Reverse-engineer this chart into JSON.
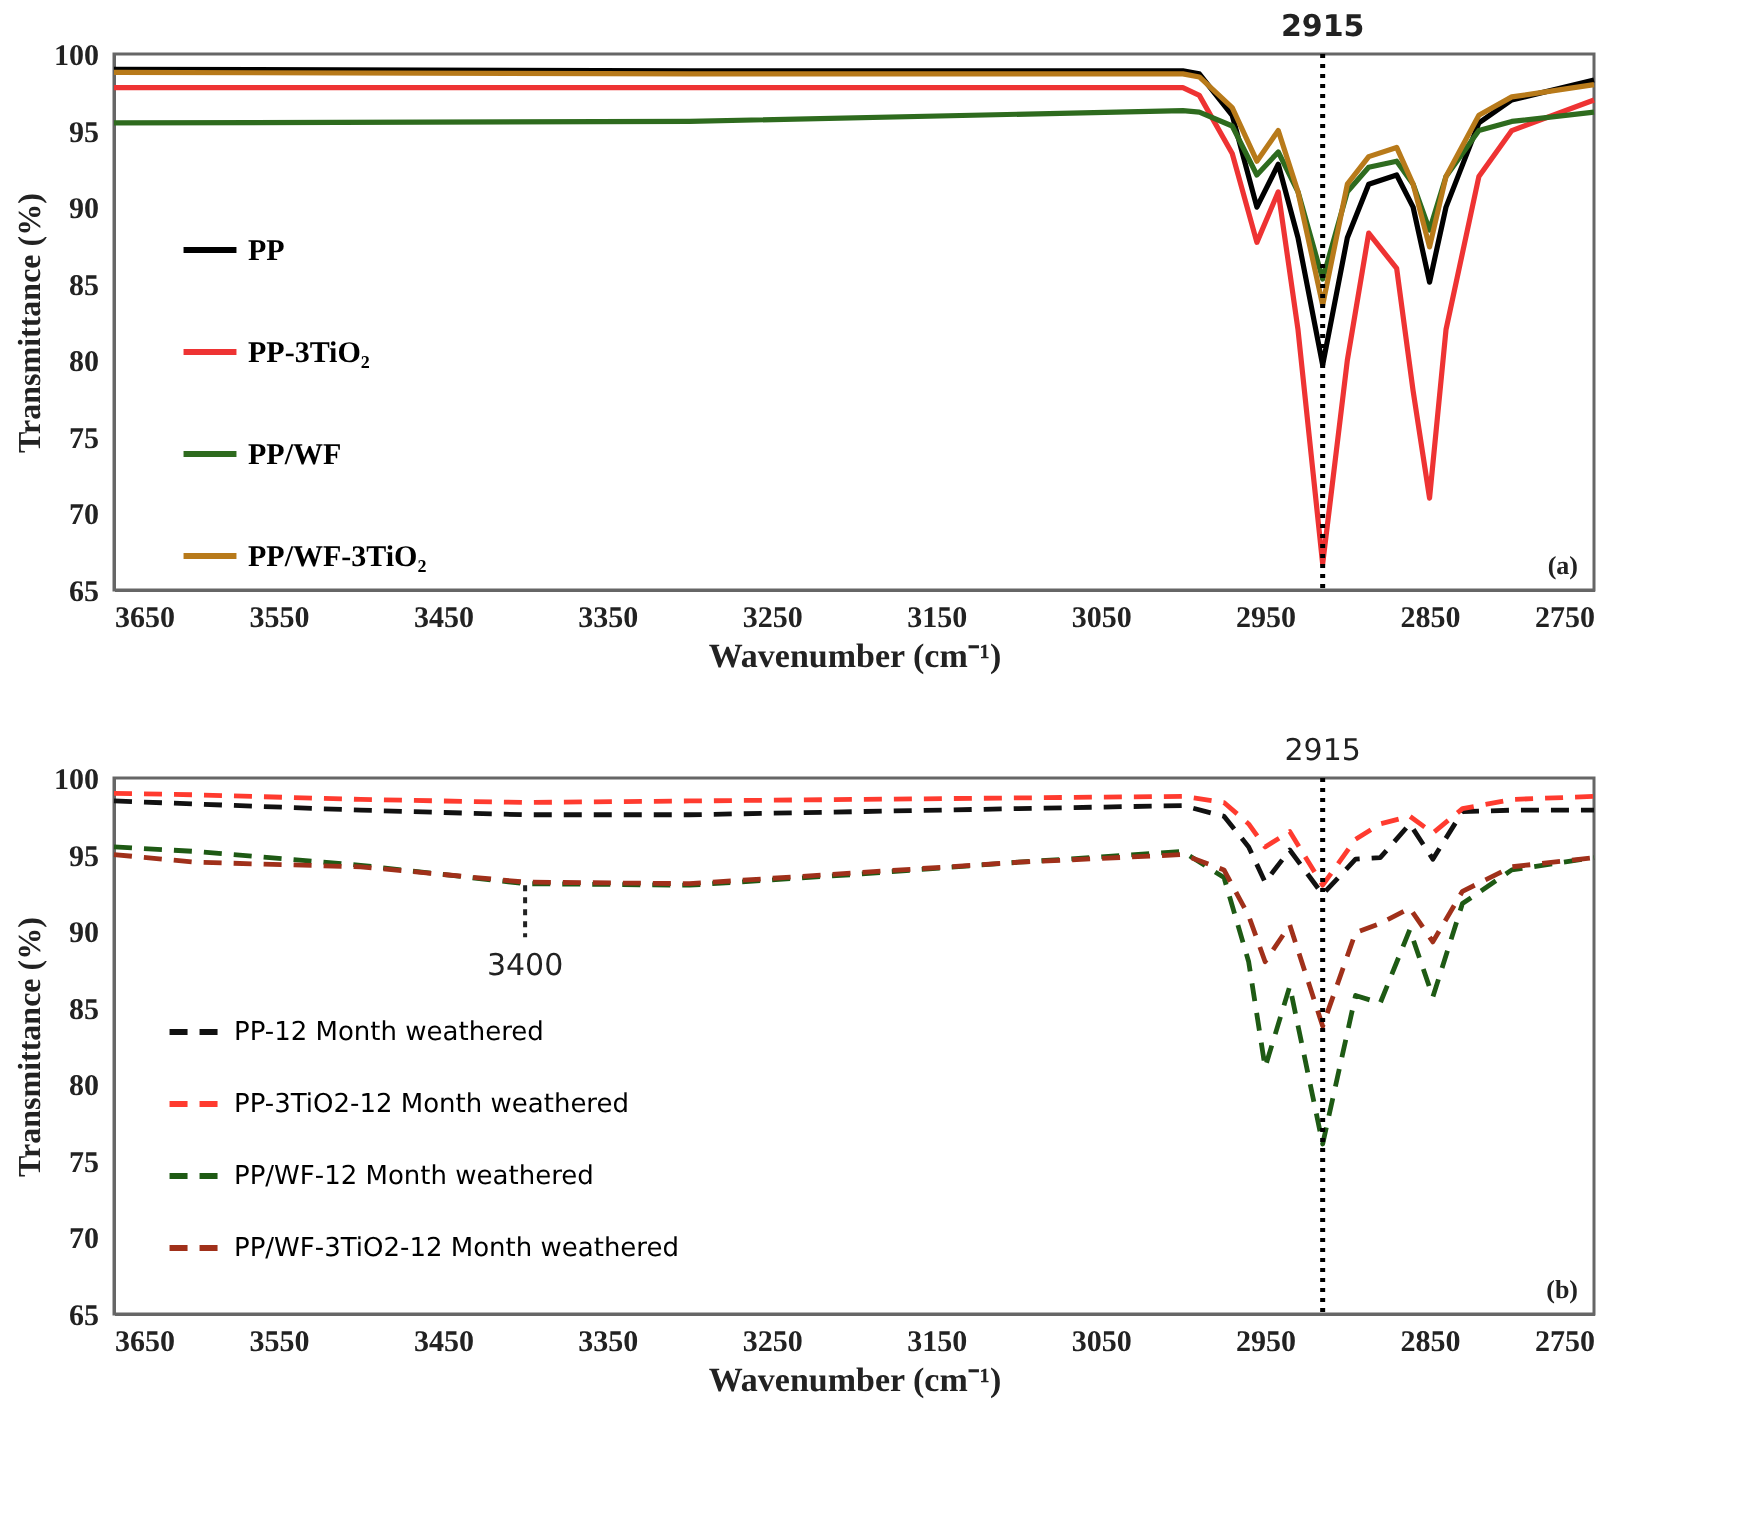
{
  "chart_data": [
    {
      "type": "line",
      "xlabel": "Wavenumber (cm⁻¹)",
      "ylabel": "Transmittance (%)",
      "x": [
        3650,
        3300,
        3000,
        2990,
        2970,
        2955,
        2942,
        2930,
        2915,
        2900,
        2887,
        2870,
        2860,
        2850,
        2840,
        2820,
        2800,
        2750
      ],
      "series": [
        {
          "name": "PP",
          "color": "#000000",
          "values": [
            99.0,
            98.9,
            98.9,
            98.7,
            96.0,
            90.0,
            92.8,
            88.0,
            79.7,
            88.0,
            91.5,
            92.1,
            90.0,
            85.1,
            90.0,
            95.5,
            97.0,
            98.3
          ]
        },
        {
          "name": "PP-3TiO₂",
          "color": "#ee3333",
          "values": [
            97.8,
            97.8,
            97.8,
            97.3,
            93.5,
            87.7,
            91.0,
            82.0,
            66.7,
            80.0,
            88.3,
            86.0,
            78.0,
            71.0,
            82.0,
            92.0,
            95.0,
            97.0
          ]
        },
        {
          "name": "PP/WF",
          "color": "#2e6b1e",
          "values": [
            95.5,
            95.6,
            96.3,
            96.2,
            95.3,
            92.1,
            93.6,
            91.0,
            85.3,
            91.0,
            92.6,
            93.0,
            91.5,
            88.5,
            92.0,
            95.0,
            95.6,
            96.2
          ]
        },
        {
          "name": "PP/WF-3TiO₂",
          "color": "#b87a1a",
          "values": [
            98.8,
            98.7,
            98.7,
            98.5,
            96.5,
            93.0,
            95.0,
            91.0,
            83.6,
            91.5,
            93.3,
            93.9,
            91.5,
            87.4,
            92.0,
            96.0,
            97.2,
            98.0
          ]
        }
      ],
      "xlim": [
        3650,
        2750
      ],
      "xticks": [
        3650,
        3550,
        3450,
        3350,
        3250,
        3150,
        3050,
        2950,
        2850,
        2750
      ],
      "ylim": [
        65,
        100
      ],
      "yticks": [
        65,
        70,
        75,
        80,
        85,
        90,
        95,
        100
      ],
      "ref_lines": [
        {
          "axis": "x",
          "value": 2915,
          "label": "2915",
          "line_style": "dotted"
        }
      ],
      "annotations": [
        "(a)"
      ],
      "legend": "left",
      "grid": false,
      "marker": "none",
      "line_style": "solid"
    },
    {
      "type": "line",
      "xlabel": "Wavenumber (cm⁻¹)",
      "ylabel": "Transmittance (%)",
      "x": [
        3650,
        3600,
        3500,
        3400,
        3300,
        3200,
        3100,
        3000,
        2975,
        2960,
        2950,
        2935,
        2915,
        2895,
        2880,
        2862,
        2848,
        2830,
        2800,
        2750
      ],
      "series": [
        {
          "name": "PP-12 Month weathered",
          "color": "#111111",
          "values": [
            98.5,
            98.3,
            97.9,
            97.6,
            97.6,
            97.8,
            98.0,
            98.2,
            97.5,
            95.5,
            93.2,
            95.3,
            92.4,
            94.7,
            94.8,
            97.0,
            94.7,
            97.8,
            97.9,
            97.9
          ]
        },
        {
          "name": "PP-3TiO2-12 Month weathered",
          "color": "#ff3b2f",
          "values": [
            99.0,
            98.9,
            98.6,
            98.4,
            98.5,
            98.6,
            98.7,
            98.8,
            98.4,
            97.0,
            95.5,
            96.5,
            93.0,
            96.0,
            97.0,
            97.5,
            96.4,
            98.0,
            98.6,
            98.8
          ]
        },
        {
          "name": "PP/WF-12 Month weathered",
          "color": "#1e5a14",
          "values": [
            95.5,
            95.2,
            94.3,
            93.1,
            93.0,
            93.7,
            94.5,
            95.2,
            93.5,
            88.0,
            81.1,
            86.4,
            76.1,
            85.8,
            85.3,
            90.1,
            85.7,
            91.8,
            94.0,
            94.8
          ]
        },
        {
          "name": "PP/WF-3TiO2-12 Month weathered",
          "color": "#a0301a",
          "values": [
            95.0,
            94.5,
            94.2,
            93.2,
            93.1,
            93.8,
            94.5,
            95.0,
            94.0,
            91.0,
            88.0,
            90.4,
            83.8,
            89.9,
            90.5,
            91.5,
            89.3,
            92.6,
            94.2,
            94.8
          ]
        }
      ],
      "xlim": [
        3650,
        2750
      ],
      "xticks": [
        3650,
        3550,
        3450,
        3350,
        3250,
        3150,
        3050,
        2950,
        2850,
        2750
      ],
      "ylim": [
        65,
        100
      ],
      "yticks": [
        65,
        70,
        75,
        80,
        85,
        90,
        95,
        100
      ],
      "ref_lines": [
        {
          "axis": "x",
          "value": 2915,
          "label": "2915",
          "line_style": "dotted"
        }
      ],
      "annotations": [
        {
          "text": "3400",
          "x": 3400,
          "y": 93
        },
        "(b)"
      ],
      "legend": "bottom left",
      "grid": false,
      "marker": "none",
      "line_style": "dashed"
    }
  ]
}
